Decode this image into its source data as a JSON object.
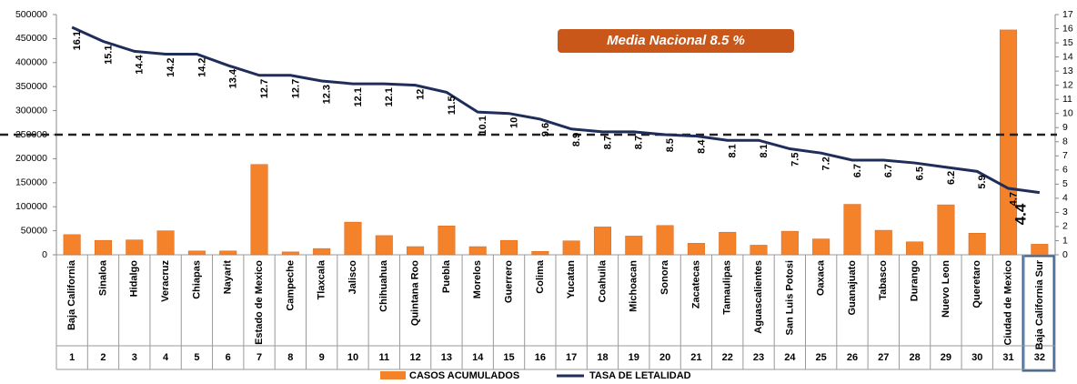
{
  "chart_data": {
    "type": "bar_line",
    "categories": [
      "Baja California",
      "Sinaloa",
      "Hidalgo",
      "Veracruz",
      "Chiapas",
      "Nayarit",
      "Estado de Mexico",
      "Campeche",
      "Tlaxcala",
      "Jalisco",
      "Chihuahua",
      "Quintana Roo",
      "Puebla",
      "Morelos",
      "Guerrero",
      "Colima",
      "Yucatan",
      "Coahuila",
      "Michoacan",
      "Sonora",
      "Zacatecas",
      "Tamaulipas",
      "Aguascalientes",
      "San Luis Potosi",
      "Oaxaca",
      "Guanajuato",
      "Tabasco",
      "Durango",
      "Nuevo Leon",
      "Queretaro",
      "Ciudad de Mexico",
      "Baja California Sur"
    ],
    "ranks": [
      1,
      2,
      3,
      4,
      5,
      6,
      7,
      8,
      9,
      10,
      11,
      12,
      13,
      14,
      15,
      16,
      17,
      18,
      19,
      20,
      21,
      22,
      23,
      24,
      25,
      26,
      27,
      28,
      29,
      30,
      31,
      32
    ],
    "series": [
      {
        "name": "CASOS ACUMULADOS",
        "type": "bar",
        "color": "#f4822a",
        "values": [
          42000,
          30000,
          31000,
          50000,
          8000,
          8000,
          188000,
          6000,
          13000,
          68000,
          40000,
          17000,
          60000,
          17000,
          30000,
          7000,
          29000,
          58000,
          39000,
          61000,
          24000,
          47000,
          20000,
          49000,
          33000,
          105000,
          51000,
          27000,
          104000,
          45000,
          468000,
          22000
        ]
      },
      {
        "name": "TASA  DE LETALIDAD",
        "type": "line",
        "axis": "y2",
        "color": "#1f2d5a",
        "values": [
          16.1,
          15.1,
          14.4,
          14.2,
          14.2,
          13.4,
          12.7,
          12.7,
          12.3,
          12.1,
          12.1,
          12,
          11.5,
          10.1,
          10,
          9.6,
          8.9,
          8.7,
          8.7,
          8.5,
          8.4,
          8.1,
          8.1,
          7.5,
          7.2,
          6.7,
          6.7,
          6.5,
          6.2,
          5.9,
          4.7,
          4.4
        ]
      }
    ],
    "ylim": [
      0,
      500000
    ],
    "yticks": [
      0,
      50000,
      100000,
      150000,
      200000,
      250000,
      300000,
      350000,
      400000,
      450000,
      500000
    ],
    "y2lim": [
      0,
      17
    ],
    "y2ticks": [
      0,
      1,
      2,
      3,
      4,
      5,
      6,
      7,
      8,
      9,
      10,
      11,
      12,
      13,
      14,
      15,
      16,
      17
    ],
    "reference_line": 8.5,
    "annotation": "Media Nacional  8.5 %"
  }
}
